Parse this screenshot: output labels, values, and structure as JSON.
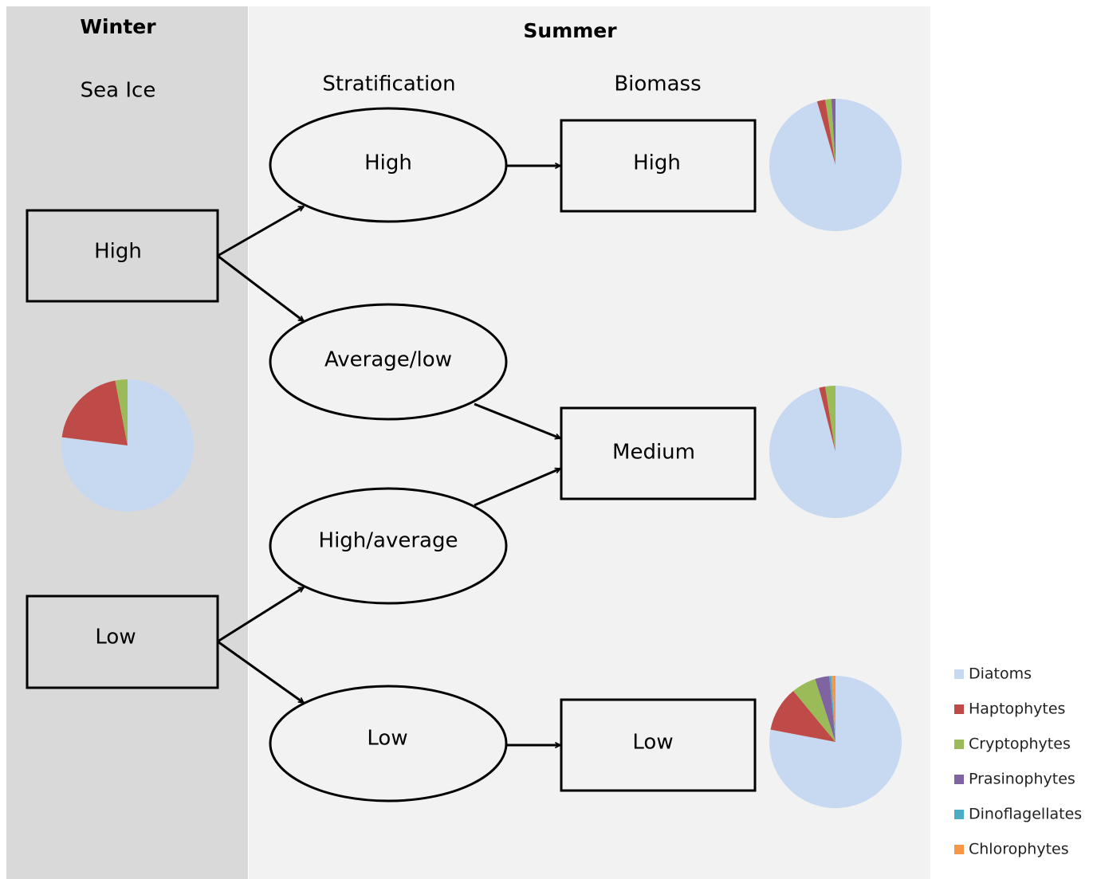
{
  "winter": {
    "title": "Winter",
    "subtitle": "Sea Ice",
    "nodes": [
      "High",
      "Low"
    ],
    "pie": {
      "values": [
        77,
        20,
        3
      ]
    }
  },
  "summer": {
    "title": "Summer",
    "columns": [
      "Stratification",
      "Biomass"
    ],
    "stratification": [
      "High",
      "Average/low",
      "High/average",
      "Low"
    ],
    "biomass": [
      "High",
      "Medium",
      "Low"
    ],
    "pies": [
      {
        "values": [
          95.5,
          2,
          1.5,
          1
        ]
      },
      {
        "values": [
          96,
          1.5,
          2.5
        ]
      },
      {
        "values": [
          78,
          11,
          6,
          3.5,
          0.5,
          1
        ]
      }
    ]
  },
  "legend": {
    "categories": [
      "Diatoms",
      "Haptophytes",
      "Cryptophytes",
      "Prasinophytes",
      "Dinoflagellates",
      "Chlorophytes"
    ],
    "colors": [
      "#c6d9f1",
      "#be4b48",
      "#9bbb59",
      "#8064a2",
      "#4bacc6",
      "#f79646"
    ]
  }
}
